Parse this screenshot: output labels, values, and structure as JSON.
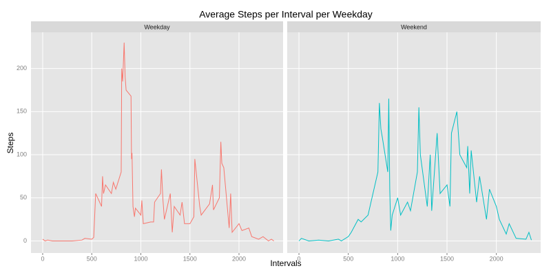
{
  "title": "Average Steps per Interval per Weekday",
  "x_label": "Intervals",
  "y_label": "Steps",
  "chart_data": [
    {
      "type": "line",
      "facet": "Weekday",
      "x": [
        0,
        25,
        50,
        100,
        200,
        300,
        400,
        430,
        500,
        520,
        540,
        600,
        610,
        620,
        640,
        700,
        720,
        745,
        800,
        805,
        815,
        830,
        840,
        850,
        900,
        905,
        910,
        920,
        935,
        945,
        1000,
        1010,
        1025,
        1100,
        1130,
        1140,
        1200,
        1210,
        1225,
        1240,
        1300,
        1320,
        1340,
        1400,
        1420,
        1445,
        1500,
        1540,
        1550,
        1600,
        1615,
        1700,
        1730,
        1740,
        1800,
        1815,
        1825,
        1845,
        1900,
        1915,
        1930,
        2000,
        2030,
        2100,
        2130,
        2200,
        2245,
        2300,
        2330,
        2355
      ],
      "series": [
        {
          "name": "Weekday",
          "color": "#f8766d",
          "values": [
            2,
            0,
            1,
            0,
            0,
            0,
            1,
            3,
            2,
            4,
            55,
            40,
            75,
            55,
            65,
            55,
            68,
            60,
            80,
            200,
            185,
            230,
            190,
            175,
            168,
            95,
            102,
            40,
            28,
            38,
            30,
            47,
            20,
            22,
            22,
            45,
            55,
            83,
            48,
            25,
            55,
            10,
            40,
            30,
            45,
            20,
            20,
            28,
            95,
            40,
            30,
            43,
            65,
            36,
            50,
            115,
            90,
            85,
            15,
            55,
            10,
            20,
            12,
            15,
            5,
            2,
            5,
            0,
            2,
            0
          ]
        }
      ],
      "xlim": [
        -119,
        2449
      ],
      "ylim": [
        -14,
        242
      ],
      "xticks": [
        0,
        500,
        1000,
        1500,
        2000
      ],
      "yticks": [
        0,
        50,
        100,
        150,
        200
      ],
      "grid": true
    },
    {
      "type": "line",
      "facet": "Weekend",
      "x": [
        0,
        25,
        100,
        200,
        300,
        400,
        430,
        500,
        530,
        600,
        630,
        700,
        730,
        800,
        815,
        830,
        845,
        900,
        910,
        920,
        930,
        945,
        1000,
        1030,
        1100,
        1130,
        1200,
        1215,
        1230,
        1300,
        1330,
        1345,
        1400,
        1430,
        1500,
        1530,
        1545,
        1600,
        1630,
        1700,
        1710,
        1730,
        1745,
        1800,
        1830,
        1900,
        1930,
        2000,
        2030,
        2100,
        2130,
        2200,
        2300,
        2330,
        2355
      ],
      "series": [
        {
          "name": "Weekend",
          "color": "#00bfc4",
          "values": [
            0,
            3,
            0,
            1,
            0,
            2,
            0,
            5,
            10,
            25,
            22,
            30,
            45,
            80,
            160,
            130,
            120,
            80,
            165,
            60,
            12,
            30,
            50,
            30,
            45,
            35,
            80,
            155,
            100,
            40,
            100,
            35,
            125,
            55,
            65,
            40,
            125,
            150,
            100,
            85,
            110,
            55,
            105,
            45,
            75,
            25,
            60,
            40,
            25,
            8,
            20,
            3,
            2,
            10,
            1
          ]
        }
      ],
      "xlim": [
        -119,
        2449
      ],
      "ylim": [
        -14,
        242
      ],
      "xticks": [
        0,
        500,
        1000,
        1500,
        2000
      ],
      "yticks": [
        0,
        50,
        100,
        150,
        200
      ],
      "grid": true
    }
  ]
}
